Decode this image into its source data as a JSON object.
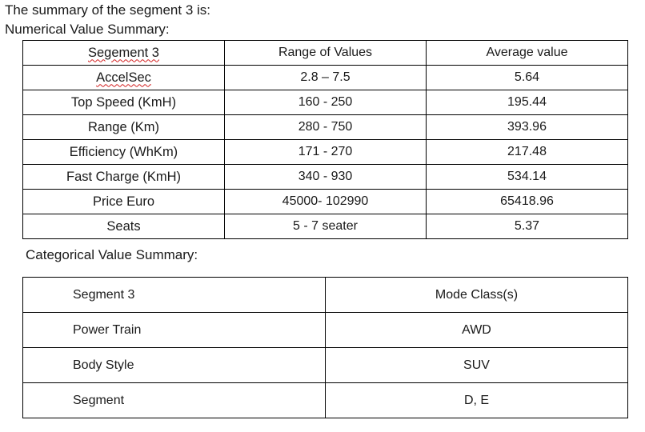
{
  "heading": {
    "line1": "The summary of the segment 3 is:",
    "line2": "Numerical Value Summary:"
  },
  "numerical_table": {
    "headers": [
      "Segement 3",
      "Range of Values",
      "Average value"
    ],
    "rows": [
      [
        "AccelSec",
        "2.8 – 7.5",
        "5.64"
      ],
      [
        "Top Speed (KmH)",
        "160 - 250",
        "195.44"
      ],
      [
        "Range (Km)",
        "280 - 750",
        "393.96"
      ],
      [
        "Efficiency (WhKm)",
        "171 - 270",
        "217.48"
      ],
      [
        "Fast Charge (KmH)",
        "340 - 930",
        "534.14"
      ],
      [
        "Price Euro",
        "45000- 102990",
        "65418.96"
      ],
      [
        "Seats",
        "5 - 7 seater",
        "5.37"
      ]
    ]
  },
  "categorical_heading": "Categorical Value Summary:",
  "categorical_table": {
    "headers": [
      "Segment 3",
      "Mode Class(s)"
    ],
    "rows": [
      [
        "Power Train",
        "AWD"
      ],
      [
        "Body Style",
        "SUV"
      ],
      [
        "Segment",
        "D, E"
      ]
    ]
  },
  "spellcheck_color": "#d21f1f"
}
